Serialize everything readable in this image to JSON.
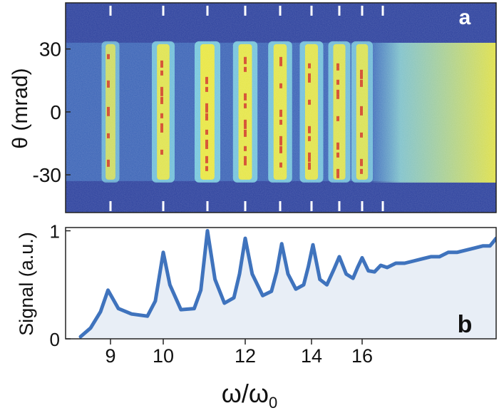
{
  "colors": {
    "heatmap_background": "#2a3f9c",
    "band_cyan": "#7cd0e0",
    "band_yellow": "#e8e640",
    "hotspot_red": "#d02a1e",
    "signal_line": "#3f73bd",
    "signal_fill": "#e8eef6",
    "panel_label": "#ffffff"
  },
  "chart_data": [
    {
      "panel": "a",
      "type": "heatmap",
      "ylabel": "θ (mrad)",
      "yticks": [
        "30",
        "0",
        "-30"
      ],
      "ytick_values": [
        30,
        0,
        -30
      ],
      "ylim": [
        -48,
        52
      ],
      "xlim": [
        8.1,
        30
      ],
      "beam_extent_mrad": [
        -33,
        33
      ],
      "harmonic_markers": [
        9,
        10,
        11,
        12,
        13,
        14,
        15,
        16,
        17
      ],
      "bands": [
        {
          "x": 9.0,
          "strength": 0.45
        },
        {
          "x": 10.0,
          "strength": 0.8
        },
        {
          "x": 11.0,
          "strength": 1.0
        },
        {
          "x": 12.0,
          "strength": 0.92
        },
        {
          "x": 13.0,
          "strength": 0.88
        },
        {
          "x": 14.0,
          "strength": 0.85
        },
        {
          "x": 15.0,
          "strength": 0.75
        },
        {
          "x": 16.0,
          "strength": 0.7
        }
      ],
      "continuum_start": 16.3,
      "panel_label": "a",
      "grid": false,
      "legend": "none"
    },
    {
      "panel": "b",
      "type": "area",
      "ylabel": "Signal (a.u.)",
      "yticks": [
        "0",
        "1"
      ],
      "ytick_values": [
        0,
        1
      ],
      "ylim": [
        0,
        1.03
      ],
      "xlabel": "ω/ω",
      "xlabel_subscript": "0",
      "xticks": [
        "9",
        "10",
        "12",
        "14",
        "16"
      ],
      "xtick_values": [
        9,
        10,
        12,
        14,
        16
      ],
      "xlim": [
        8.1,
        30
      ],
      "x": [
        8.4,
        8.6,
        8.8,
        8.95,
        9.15,
        9.4,
        9.7,
        9.85,
        10.0,
        10.15,
        10.4,
        10.7,
        10.85,
        11.0,
        11.2,
        11.45,
        11.7,
        11.85,
        12.0,
        12.2,
        12.5,
        12.75,
        12.9,
        13.05,
        13.25,
        13.5,
        13.75,
        13.9,
        14.05,
        14.3,
        14.55,
        14.8,
        15.0,
        15.3,
        15.6,
        15.8,
        16.0,
        16.3,
        16.6,
        16.9,
        17.5,
        18.5,
        19.5,
        20.5,
        21.5,
        22.5,
        23.5,
        24.5,
        25.5,
        26.5,
        27.5,
        28.5,
        29.3,
        30.0
      ],
      "y": [
        0.02,
        0.1,
        0.25,
        0.45,
        0.28,
        0.23,
        0.21,
        0.35,
        0.8,
        0.5,
        0.27,
        0.28,
        0.45,
        1.0,
        0.55,
        0.33,
        0.38,
        0.6,
        0.93,
        0.6,
        0.4,
        0.44,
        0.62,
        0.88,
        0.6,
        0.46,
        0.5,
        0.67,
        0.87,
        0.55,
        0.5,
        0.64,
        0.76,
        0.6,
        0.56,
        0.66,
        0.75,
        0.63,
        0.62,
        0.68,
        0.66,
        0.7,
        0.7,
        0.72,
        0.74,
        0.76,
        0.76,
        0.8,
        0.8,
        0.82,
        0.84,
        0.86,
        0.86,
        0.93
      ],
      "panel_label": "b",
      "grid": false,
      "legend": "none"
    }
  ]
}
